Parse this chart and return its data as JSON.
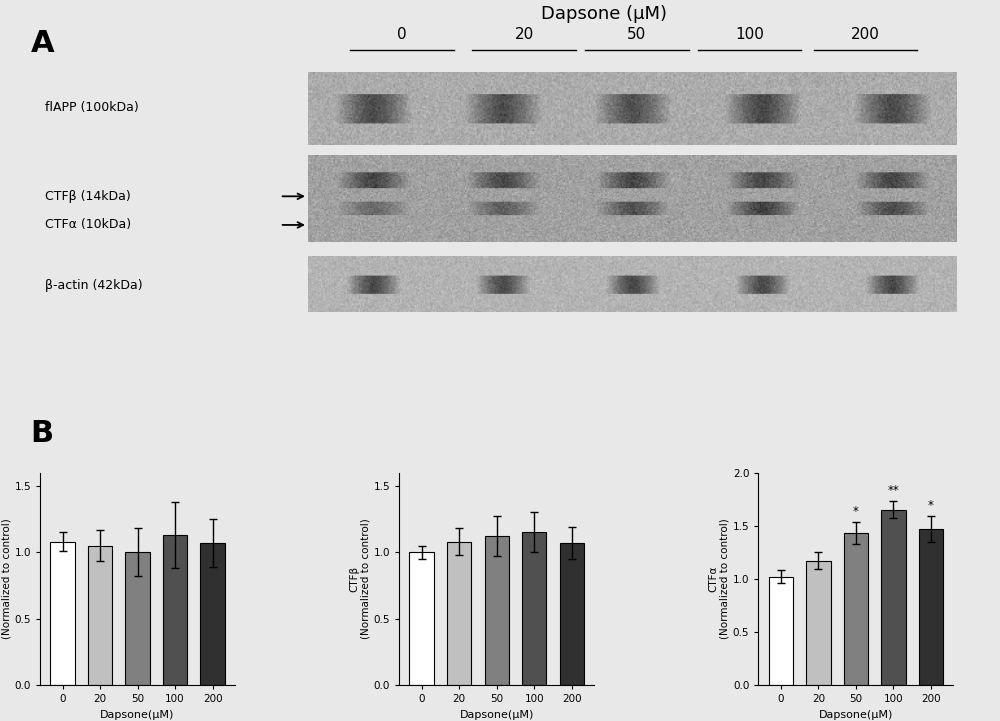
{
  "title_top": "Dapsone (μM)",
  "concentrations": [
    "0",
    "20",
    "50",
    "100",
    "200"
  ],
  "panel_A_label": "A",
  "panel_B_label": "B",
  "bar_colors": [
    "#ffffff",
    "#c0c0c0",
    "#808080",
    "#505050",
    "#303030"
  ],
  "bar_edge_color": "#000000",
  "flAPP_values": [
    1.08,
    1.05,
    1.0,
    1.13,
    1.07
  ],
  "flAPP_errors": [
    0.07,
    0.12,
    0.18,
    0.25,
    0.18
  ],
  "CTFb_values": [
    1.0,
    1.08,
    1.12,
    1.15,
    1.07
  ],
  "CTFb_errors": [
    0.05,
    0.1,
    0.15,
    0.15,
    0.12
  ],
  "CTFa_values": [
    1.02,
    1.17,
    1.43,
    1.65,
    1.47
  ],
  "CTFa_errors": [
    0.06,
    0.08,
    0.1,
    0.08,
    0.12
  ],
  "CTFa_stars": [
    "",
    "",
    "*",
    "**",
    "*"
  ],
  "xlabel": "Dapsone(μM)",
  "ylabel_flAPP": "flAPP\n(Normalized to control)",
  "ylabel_CTFb": "CTFβ\n(Normalized to control)",
  "ylabel_CTFa": "CTFα\n(Normalized to control)",
  "ylim_flAPP": [
    0.0,
    1.6
  ],
  "ylim_CTFb": [
    0.0,
    1.6
  ],
  "ylim_CTFa": [
    0.0,
    2.0
  ],
  "yticks_flAPP": [
    0.0,
    0.5,
    1.0,
    1.5
  ],
  "yticks_CTFb": [
    0.0,
    0.5,
    1.0,
    1.5
  ],
  "yticks_CTFa": [
    0.0,
    0.5,
    1.0,
    1.5,
    2.0
  ],
  "bg_color": "#e8e8e8"
}
